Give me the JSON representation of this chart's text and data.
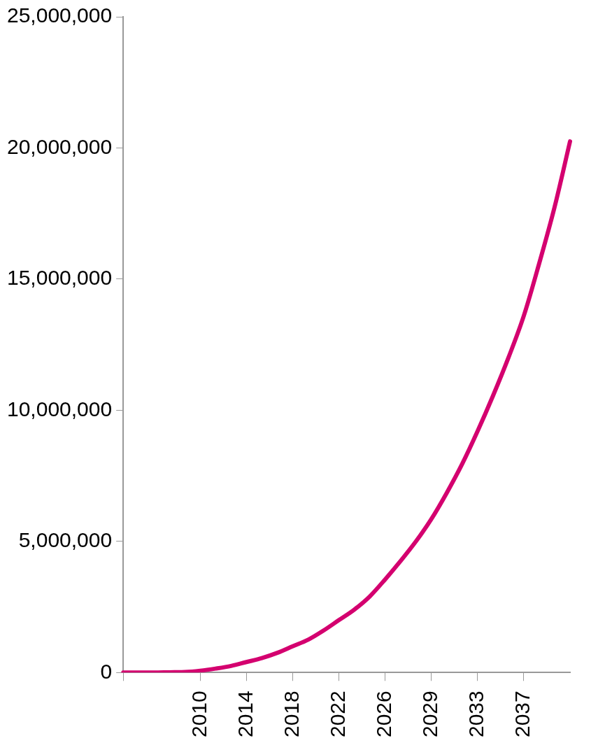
{
  "chart_data": {
    "type": "line",
    "categories": [
      null,
      null,
      null,
      null,
      null,
      "2010",
      null,
      null,
      "2014",
      null,
      null,
      "2018",
      null,
      null,
      "2022",
      null,
      null,
      "2026",
      null,
      null,
      "2029",
      null,
      null,
      "2033",
      null,
      null,
      "2037",
      null,
      null,
      null
    ],
    "series": [
      {
        "color": "#d4006f",
        "values": [
          0,
          0,
          0,
          10000.0,
          20000.0,
          70000.0,
          150000.0,
          250000.0,
          400000.0,
          550000.0,
          750000.0,
          1000000.0,
          1250000.0,
          1600000.0,
          2000000.0,
          2400000.0,
          2900000.0,
          3550000.0,
          4250000.0,
          5000000.0,
          5850000.0,
          6850000.0,
          7950000.0,
          9200000.0,
          10550000.0,
          12000000.0,
          13600000.0,
          15600000.0,
          17750000.0,
          20250000.0
        ]
      }
    ],
    "ylim": [
      0,
      25000000
    ],
    "yticks": [
      0,
      {
        "value": 5000000,
        "label": "5,000,000"
      },
      {
        "value": 10000000,
        "label": "10,000,000"
      },
      {
        "value": 15000000,
        "label": "15,000,000"
      },
      {
        "value": 20000000,
        "label": "20,000,000"
      },
      {
        "value": 25000000,
        "label": "25,000,000"
      }
    ],
    "grid": false,
    "legend": false,
    "marker": "none",
    "line_style": "solid"
  }
}
